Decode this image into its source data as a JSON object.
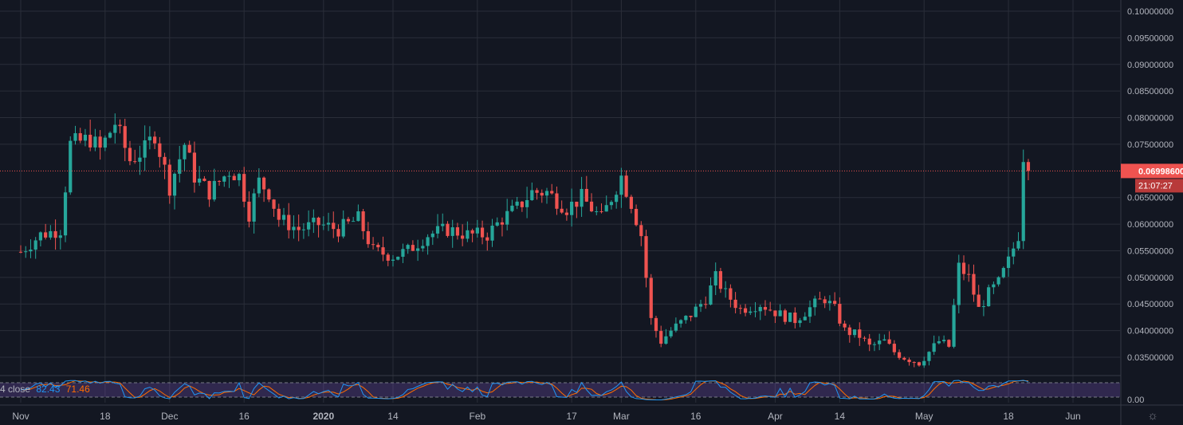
{
  "chart_data": {
    "type": "candlestick",
    "y_ticks": [
      "0.10000000",
      "0.09500000",
      "0.09000000",
      "0.08500000",
      "0.08000000",
      "0.07500000",
      "0.06500000",
      "0.06000000",
      "0.05500000",
      "0.05000000",
      "0.04500000",
      "0.04000000",
      "0.03500000"
    ],
    "ylim": [
      0.03,
      0.1
    ],
    "x_ticks": [
      "Nov",
      "18",
      "Dec",
      "16",
      "2020",
      "14",
      "Feb",
      "17",
      "Mar",
      "16",
      "Apr",
      "14",
      "May",
      "18",
      "Jun"
    ],
    "x_tick_days": [
      0,
      17,
      30,
      45,
      61,
      75,
      92,
      111,
      121,
      136,
      152,
      165,
      182,
      199,
      212
    ],
    "x_range_days": [
      0,
      224
    ],
    "last_price": "0.06998600",
    "countdown": "21:07:27",
    "last_price_value": 0.069986,
    "grid": true,
    "colors": {
      "up": "#26a69a",
      "down": "#ef5350",
      "background": "#131722",
      "grid": "#2a2e39",
      "price_line": "#ef5350",
      "k_line": "#2196f3",
      "d_line": "#ff6d00",
      "band": "#7e57c2"
    },
    "anchors": [
      [
        0,
        0.0548
      ],
      [
        4,
        0.058
      ],
      [
        8,
        0.059
      ],
      [
        10,
        0.075
      ],
      [
        14,
        0.076
      ],
      [
        16,
        0.074
      ],
      [
        19,
        0.079
      ],
      [
        22,
        0.072
      ],
      [
        25,
        0.074
      ],
      [
        27,
        0.077
      ],
      [
        30,
        0.067
      ],
      [
        33,
        0.075
      ],
      [
        35,
        0.069
      ],
      [
        38,
        0.066
      ],
      [
        42,
        0.07
      ],
      [
        44,
        0.069
      ],
      [
        46,
        0.062
      ],
      [
        48,
        0.068
      ],
      [
        50,
        0.066
      ],
      [
        52,
        0.061
      ],
      [
        56,
        0.059
      ],
      [
        60,
        0.06
      ],
      [
        64,
        0.059
      ],
      [
        68,
        0.061
      ],
      [
        71,
        0.055
      ],
      [
        75,
        0.054
      ],
      [
        78,
        0.055
      ],
      [
        82,
        0.058
      ],
      [
        86,
        0.059
      ],
      [
        90,
        0.058
      ],
      [
        94,
        0.058
      ],
      [
        97,
        0.061
      ],
      [
        100,
        0.063
      ],
      [
        103,
        0.066
      ],
      [
        106,
        0.066
      ],
      [
        110,
        0.063
      ],
      [
        113,
        0.065
      ],
      [
        117,
        0.061
      ],
      [
        121,
        0.069
      ],
      [
        123,
        0.064
      ],
      [
        125,
        0.058
      ],
      [
        127,
        0.042
      ],
      [
        129,
        0.038
      ],
      [
        131,
        0.04
      ],
      [
        135,
        0.043
      ],
      [
        138,
        0.046
      ],
      [
        140,
        0.05
      ],
      [
        142,
        0.047
      ],
      [
        145,
        0.044
      ],
      [
        149,
        0.045
      ],
      [
        153,
        0.043
      ],
      [
        156,
        0.042
      ],
      [
        160,
        0.045
      ],
      [
        162,
        0.046
      ],
      [
        164,
        0.044
      ],
      [
        166,
        0.04
      ],
      [
        169,
        0.039
      ],
      [
        171,
        0.037
      ],
      [
        174,
        0.038
      ],
      [
        176,
        0.036
      ],
      [
        178,
        0.035
      ],
      [
        181,
        0.034
      ],
      [
        183,
        0.036
      ],
      [
        185,
        0.038
      ],
      [
        187,
        0.037
      ],
      [
        189,
        0.052
      ],
      [
        191,
        0.05
      ],
      [
        193,
        0.044
      ],
      [
        195,
        0.047
      ],
      [
        197,
        0.049
      ],
      [
        199,
        0.053
      ],
      [
        201,
        0.058
      ],
      [
        202,
        0.073
      ],
      [
        203,
        0.07
      ]
    ],
    "stoch": {
      "k_last": "82.43",
      "d_last": "71.46",
      "label": "4 close",
      "zero_label": "0.00"
    }
  }
}
